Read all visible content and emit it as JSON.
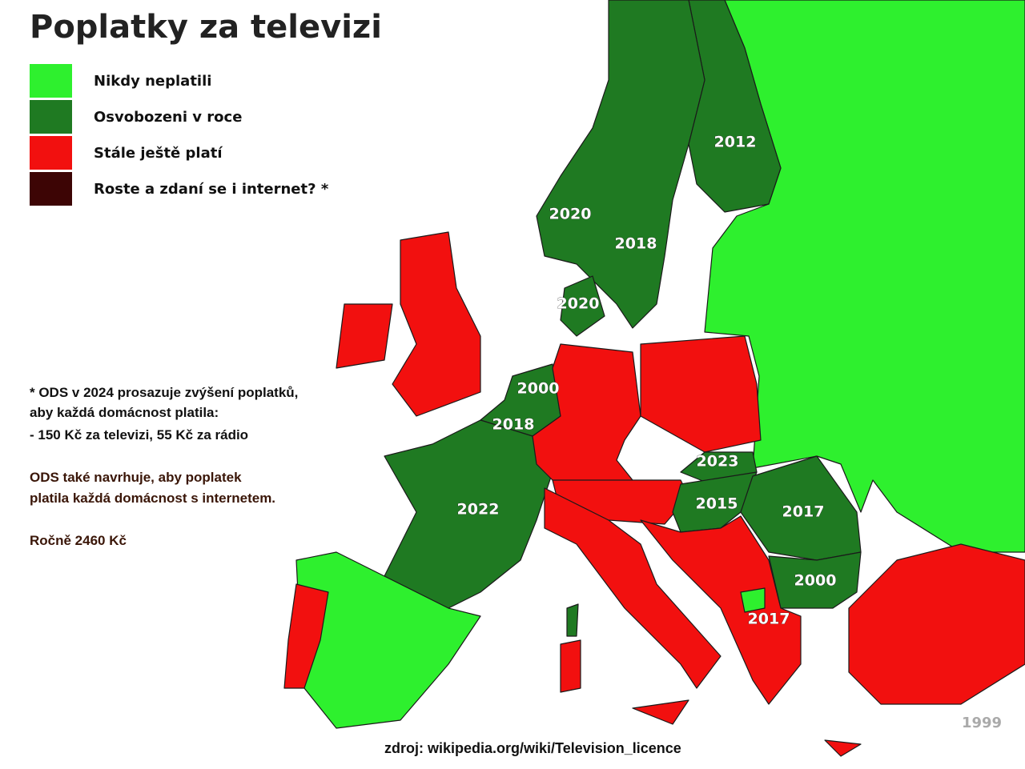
{
  "title": "Poplatky za televizi",
  "legend": [
    {
      "label": "Nikdy neplatili",
      "color": "#2ef02e"
    },
    {
      "label": "Osvobozeni v roce",
      "color": "#1f7a22"
    },
    {
      "label": "Stále ještě platí",
      "color": "#f2100f"
    },
    {
      "label": "Roste a zdaní se i internet? *",
      "color": "#3d0505"
    }
  ],
  "labels": [
    "2012",
    "2020",
    "2018",
    "2020",
    "2000",
    "2018",
    "2022",
    "2023",
    "2015",
    "2017",
    "2000",
    "2017",
    "1999"
  ],
  "notes": [
    "* ODS v 2024 prosazuje zvýšení poplatků,",
    "aby každá domácnost platila:",
    "- 150 Kč za televizi,  55 Kč  za rádio",
    "ODS také navrhuje, aby poplatek",
    "platila každá domácnost s internetem.",
    "Ročně 2460 Kč"
  ],
  "source": "zdroj: wikipedia.org/wiki/Television_licence"
}
